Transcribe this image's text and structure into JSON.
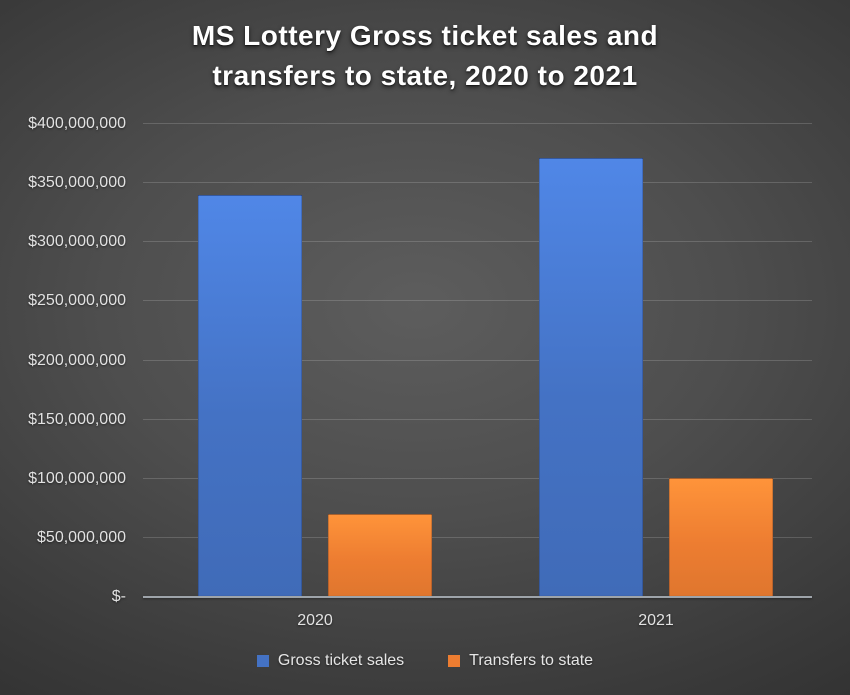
{
  "title": {
    "line1": "MS Lottery Gross ticket sales and",
    "line2": "transfers to state, 2020 to 2021"
  },
  "y_axis": {
    "tick_labels_bottom_to_top": [
      "$-",
      "$50,000,000",
      "$100,000,000",
      "$150,000,000",
      "$200,000,000",
      "$250,000,000",
      "$300,000,000",
      "$350,000,000",
      "$400,000,000"
    ]
  },
  "x_axis": {
    "tick_labels": [
      "2020",
      "2021"
    ]
  },
  "chart_data": {
    "type": "bar",
    "title": "MS Lottery Gross ticket sales and transfers to state, 2020 to 2021",
    "categories": [
      "2020",
      "2021"
    ],
    "series": [
      {
        "name": "Gross ticket sales",
        "color": "#4472C4",
        "values": [
          340000000,
          371000000
        ]
      },
      {
        "name": "Transfers to state",
        "color": "#ED7D31",
        "values": [
          70000000,
          101000000
        ]
      }
    ],
    "ylim": [
      0,
      400000000
    ],
    "ytick_interval": 50000000,
    "grid": true,
    "legend_position": "bottom",
    "background": "dark-gray-radial-gradient"
  },
  "colors": {
    "series_blue": "#4472C4",
    "series_orange": "#ED7D31",
    "title_text": "#FFFFFF",
    "axis_text": "#E2E2E2",
    "gridline": "rgba(255,255,255,0.16)",
    "axis_line": "#9EA4AA"
  }
}
